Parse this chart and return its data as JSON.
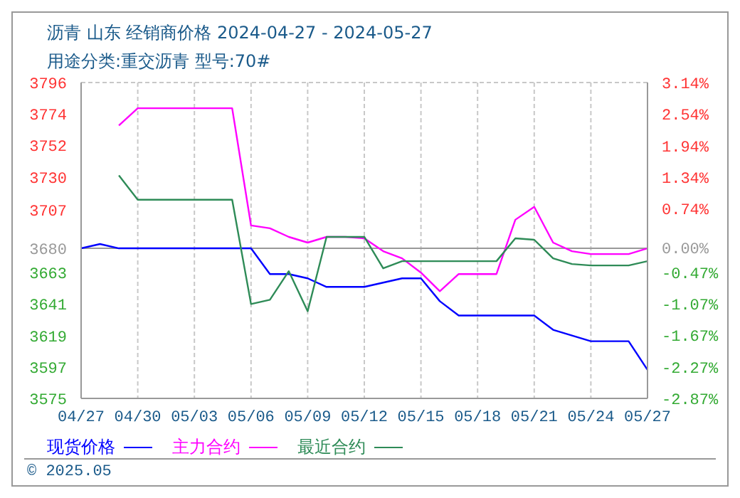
{
  "chart_data": {
    "type": "line",
    "title": "沥青 山东 经销商价格 2024-04-27 - 2024-05-27",
    "subtitle": "用途分类:重交沥青 型号:70#",
    "x": [
      "2024-04-27",
      "2024-04-28",
      "2024-04-29",
      "2024-04-30",
      "2024-05-01",
      "2024-05-02",
      "2024-05-03",
      "2024-05-04",
      "2024-05-05",
      "2024-05-06",
      "2024-05-07",
      "2024-05-08",
      "2024-05-09",
      "2024-05-10",
      "2024-05-11",
      "2024-05-12",
      "2024-05-13",
      "2024-05-14",
      "2024-05-15",
      "2024-05-16",
      "2024-05-17",
      "2024-05-18",
      "2024-05-19",
      "2024-05-20",
      "2024-05-21",
      "2024-05-22",
      "2024-05-23",
      "2024-05-24",
      "2024-05-25",
      "2024-05-26",
      "2024-05-27"
    ],
    "series": [
      {
        "name": "现货价格",
        "color": "#0000ff",
        "values": [
          3680,
          3683,
          3680,
          3680,
          3680,
          3680,
          3680,
          3680,
          3680,
          3680,
          3662,
          3662,
          3659,
          3653,
          3653,
          3653,
          3656,
          3659,
          3659,
          3643,
          3633,
          3633,
          3633,
          3633,
          3633,
          3623,
          3619,
          3615,
          3615,
          3615,
          3595
        ]
      },
      {
        "name": "主力合约",
        "color": "#ff00ff",
        "values": [
          null,
          null,
          3766,
          3778,
          3778,
          3778,
          3778,
          3778,
          3778,
          3696,
          3694,
          3688,
          3684,
          3688,
          3688,
          3687,
          3678,
          3673,
          3663,
          3650,
          3662,
          3662,
          3662,
          3700,
          3709,
          3684,
          3678,
          3676,
          3676,
          3676,
          3680
        ]
      },
      {
        "name": "最近合约",
        "color": "#2e8b57",
        "values": [
          null,
          null,
          3731,
          3714,
          3714,
          3714,
          3714,
          3714,
          3714,
          3641,
          3644,
          3664,
          3636,
          3688,
          3688,
          3688,
          3666,
          3671,
          3671,
          3671,
          3671,
          3671,
          3671,
          3687,
          3686,
          3673,
          3669,
          3668,
          3668,
          3668,
          3671
        ]
      }
    ],
    "xlim": [
      "2024-04-27",
      "2024-05-27"
    ],
    "xticks": [
      {
        "value": "2024-04-27",
        "label": "04/27"
      },
      {
        "value": "2024-04-30",
        "label": "04/30"
      },
      {
        "value": "2024-05-03",
        "label": "05/03"
      },
      {
        "value": "2024-05-06",
        "label": "05/06"
      },
      {
        "value": "2024-05-09",
        "label": "05/09"
      },
      {
        "value": "2024-05-12",
        "label": "05/12"
      },
      {
        "value": "2024-05-15",
        "label": "05/15"
      },
      {
        "value": "2024-05-18",
        "label": "05/18"
      },
      {
        "value": "2024-05-21",
        "label": "05/21"
      },
      {
        "value": "2024-05-24",
        "label": "05/24"
      },
      {
        "value": "2024-05-27",
        "label": "05/27"
      }
    ],
    "ylim": [
      3575,
      3796
    ],
    "yticks": [
      3575,
      3597,
      3619,
      3641,
      3663,
      3680,
      3707,
      3730,
      3752,
      3774,
      3796
    ],
    "y2lim": [
      -2.87,
      3.14
    ],
    "y2ticks": [
      {
        "value": -2.87,
        "label": "-2.87%"
      },
      {
        "value": -2.27,
        "label": "-2.27%"
      },
      {
        "value": -1.67,
        "label": "-1.67%"
      },
      {
        "value": -1.07,
        "label": "-1.07%"
      },
      {
        "value": -0.47,
        "label": "-0.47%"
      },
      {
        "value": 0,
        "label": "0.00%"
      },
      {
        "value": 0.74,
        "label": "0.74%"
      },
      {
        "value": 1.34,
        "label": "1.34%"
      },
      {
        "value": 1.94,
        "label": "1.94%"
      },
      {
        "value": 2.54,
        "label": "2.54%"
      },
      {
        "value": 3.14,
        "label": "3.14%"
      }
    ],
    "ref_lines": [
      {
        "axis": "y",
        "value": 3680,
        "color": "#999999"
      }
    ],
    "grid": true,
    "legend": "bottom",
    "marker": "none",
    "line_style": "solid",
    "annotations": [
      "© 2025.05"
    ]
  }
}
